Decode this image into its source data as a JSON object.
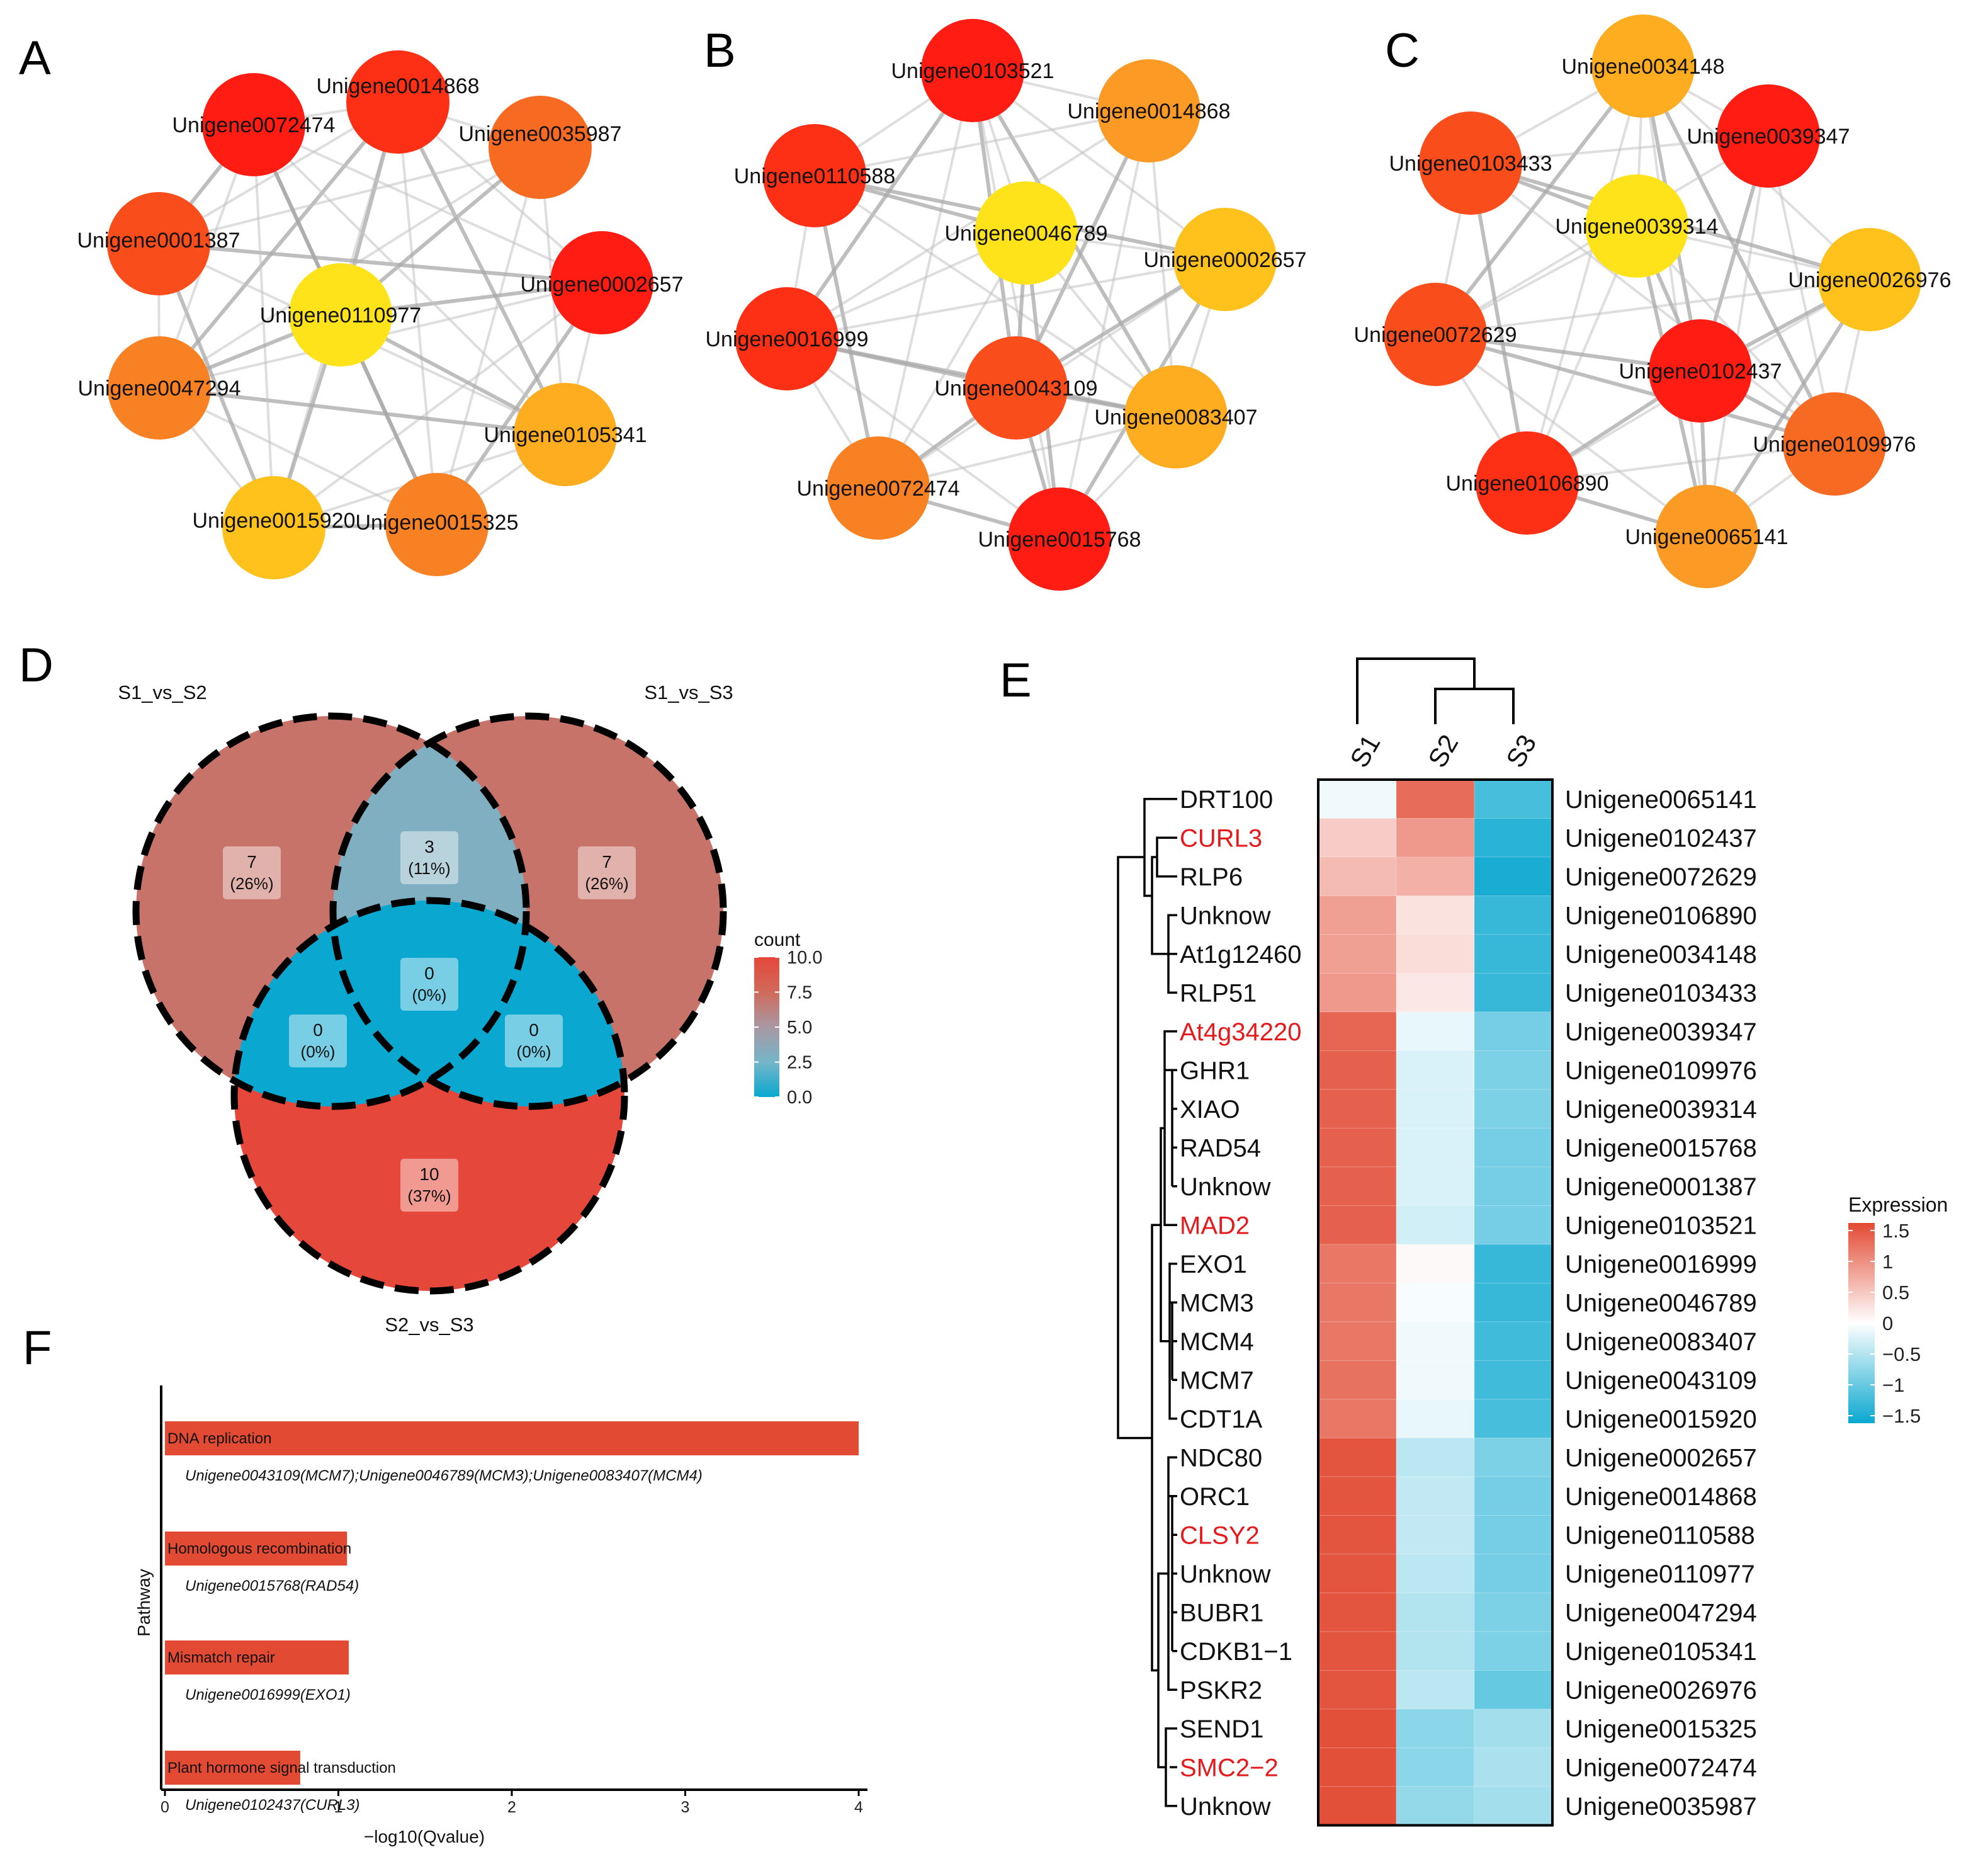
{
  "panel_labels": {
    "A": "A",
    "B": "B",
    "C": "C",
    "D": "D",
    "E": "E",
    "F": "F"
  },
  "colors": {
    "c100": "#ff1c12",
    "c90": "#fd3015",
    "c80": "#fa4d1c",
    "c70": "#f76a22",
    "c60": "#f88124",
    "c50": "#fb9a24",
    "c40": "#fdad1f",
    "c30": "#ffc21d",
    "c20": "#ffe31a",
    "heat_high": "#e24a33",
    "heat_mid": "#ffffff",
    "heat_low": "#0aa8d0",
    "edge": "#c2c2c2",
    "red_label": "#e41a1c"
  },
  "chart_data": [
    {
      "type": "network",
      "panel": "A",
      "nodes": [
        {
          "label": "Unigene0014868",
          "color": "c90"
        },
        {
          "label": "Unigene0035987",
          "color": "c70"
        },
        {
          "label": "Unigene0002657",
          "color": "c100"
        },
        {
          "label": "Unigene0105341",
          "color": "c40"
        },
        {
          "label": "Unigene0015325",
          "color": "c60"
        },
        {
          "label": "Unigene0015920",
          "color": "c30"
        },
        {
          "label": "Unigene0047294",
          "color": "c60"
        },
        {
          "label": "Unigene0001387",
          "color": "c80"
        },
        {
          "label": "Unigene0072474",
          "color": "c100"
        },
        {
          "label": "Unigene0110977",
          "color": "c20"
        }
      ]
    },
    {
      "type": "network",
      "panel": "B",
      "nodes": [
        {
          "label": "Unigene0103521",
          "color": "c100"
        },
        {
          "label": "Unigene0014868",
          "color": "c50"
        },
        {
          "label": "Unigene0002657",
          "color": "c30"
        },
        {
          "label": "Unigene0083407",
          "color": "c40"
        },
        {
          "label": "Unigene0015768",
          "color": "c100"
        },
        {
          "label": "Unigene0072474",
          "color": "c60"
        },
        {
          "label": "Unigene0016999",
          "color": "c90"
        },
        {
          "label": "Unigene0110588",
          "color": "c90"
        },
        {
          "label": "Unigene0046789",
          "color": "c20"
        },
        {
          "label": "Unigene0043109",
          "color": "c80"
        }
      ]
    },
    {
      "type": "network",
      "panel": "C",
      "nodes": [
        {
          "label": "Unigene0034148",
          "color": "c40"
        },
        {
          "label": "Unigene0039347",
          "color": "c100"
        },
        {
          "label": "Unigene0026976",
          "color": "c30"
        },
        {
          "label": "Unigene0109976",
          "color": "c70"
        },
        {
          "label": "Unigene0065141",
          "color": "c50"
        },
        {
          "label": "Unigene0106890",
          "color": "c90"
        },
        {
          "label": "Unigene0072629",
          "color": "c80"
        },
        {
          "label": "Unigene0103433",
          "color": "c80"
        },
        {
          "label": "Unigene0039314",
          "color": "c20"
        },
        {
          "label": "Unigene0102437",
          "color": "c100"
        }
      ]
    },
    {
      "type": "venn",
      "panel": "D",
      "sets": [
        "S1_vs_S2",
        "S1_vs_S3",
        "S2_vs_S3"
      ],
      "regions": [
        {
          "sets": "S1_vs_S2 only",
          "count": "7",
          "pct": "(26%)",
          "value": 7
        },
        {
          "sets": "S1_vs_S2 & S1_vs_S3",
          "count": "3",
          "pct": "(11%)",
          "value": 3
        },
        {
          "sets": "S1_vs_S3 only",
          "count": "7",
          "pct": "(26%)",
          "value": 7
        },
        {
          "sets": "S1_vs_S2 & S2_vs_S3",
          "count": "0",
          "pct": "(0%)",
          "value": 0
        },
        {
          "sets": "all three",
          "count": "0",
          "pct": "(0%)",
          "value": 0
        },
        {
          "sets": "S1_vs_S3 & S2_vs_S3",
          "count": "0",
          "pct": "(0%)",
          "value": 0
        },
        {
          "sets": "S2_vs_S3 only",
          "count": "10",
          "pct": "(37%)",
          "value": 10
        }
      ],
      "legend": {
        "title": "count",
        "ticks": [
          "10.0",
          "7.5",
          "5.0",
          "2.5",
          "0.0"
        ],
        "range": [
          0,
          10
        ]
      }
    },
    {
      "type": "heatmap",
      "panel": "E",
      "columns": [
        "S1",
        "S2",
        "S3"
      ],
      "rows": [
        {
          "name": "DRT100",
          "id": "Unigene0065141",
          "red": false,
          "values": [
            -0.1,
            1.3,
            -1.2
          ]
        },
        {
          "name": "CURL3",
          "id": "Unigene0102437",
          "red": true,
          "values": [
            0.45,
            0.9,
            -1.4
          ]
        },
        {
          "name": "RLP6",
          "id": "Unigene0072629",
          "red": false,
          "values": [
            0.6,
            0.7,
            -1.5
          ]
        },
        {
          "name": "Unknow",
          "id": "Unigene0106890",
          "red": false,
          "values": [
            0.85,
            0.25,
            -1.3
          ]
        },
        {
          "name": "At1g12460",
          "id": "Unigene0034148",
          "red": false,
          "values": [
            0.85,
            0.3,
            -1.3
          ]
        },
        {
          "name": "RLP51",
          "id": "Unigene0103433",
          "red": false,
          "values": [
            0.9,
            0.2,
            -1.3
          ]
        },
        {
          "name": "At4g34220",
          "id": "Unigene0039347",
          "red": true,
          "values": [
            1.35,
            -0.15,
            -0.9
          ]
        },
        {
          "name": "GHR1",
          "id": "Unigene0109976",
          "red": false,
          "values": [
            1.4,
            -0.25,
            -0.85
          ]
        },
        {
          "name": "XIAO",
          "id": "Unigene0039314",
          "red": false,
          "values": [
            1.4,
            -0.25,
            -0.85
          ]
        },
        {
          "name": "RAD54",
          "id": "Unigene0015768",
          "red": false,
          "values": [
            1.4,
            -0.25,
            -0.9
          ]
        },
        {
          "name": "Unknow",
          "id": "Unigene0001387",
          "red": false,
          "values": [
            1.4,
            -0.25,
            -0.9
          ]
        },
        {
          "name": "MAD2",
          "id": "Unigene0103521",
          "red": true,
          "values": [
            1.4,
            -0.3,
            -0.9
          ]
        },
        {
          "name": "EXO1",
          "id": "Unigene0016999",
          "red": false,
          "values": [
            1.2,
            0.05,
            -1.3
          ]
        },
        {
          "name": "MCM3",
          "id": "Unigene0046789",
          "red": false,
          "values": [
            1.2,
            -0.05,
            -1.3
          ]
        },
        {
          "name": "MCM4",
          "id": "Unigene0083407",
          "red": false,
          "values": [
            1.2,
            -0.1,
            -1.25
          ]
        },
        {
          "name": "MCM7",
          "id": "Unigene0043109",
          "red": false,
          "values": [
            1.25,
            -0.1,
            -1.25
          ]
        },
        {
          "name": "CDT1A",
          "id": "Unigene0015920",
          "red": false,
          "values": [
            1.2,
            -0.15,
            -1.2
          ]
        },
        {
          "name": "NDC80",
          "id": "Unigene0002657",
          "red": false,
          "values": [
            1.5,
            -0.45,
            -0.85
          ]
        },
        {
          "name": "ORC1",
          "id": "Unigene0014868",
          "red": false,
          "values": [
            1.5,
            -0.4,
            -0.9
          ]
        },
        {
          "name": "CLSY2",
          "id": "Unigene0110588",
          "red": true,
          "values": [
            1.5,
            -0.4,
            -0.9
          ]
        },
        {
          "name": "Unknow",
          "id": "Unigene0110977",
          "red": false,
          "values": [
            1.5,
            -0.45,
            -0.9
          ]
        },
        {
          "name": "BUBR1",
          "id": "Unigene0047294",
          "red": false,
          "values": [
            1.5,
            -0.5,
            -0.85
          ]
        },
        {
          "name": "CDKB1−1",
          "id": "Unigene0105341",
          "red": false,
          "values": [
            1.5,
            -0.5,
            -0.85
          ]
        },
        {
          "name": "PSKR2",
          "id": "Unigene0026976",
          "red": false,
          "values": [
            1.5,
            -0.45,
            -1.0
          ]
        },
        {
          "name": "SEND1",
          "id": "Unigene0015325",
          "red": false,
          "values": [
            1.55,
            -0.75,
            -0.6
          ]
        },
        {
          "name": "SMC2−2",
          "id": "Unigene0072474",
          "red": true,
          "values": [
            1.55,
            -0.75,
            -0.55
          ]
        },
        {
          "name": "Unknow",
          "id": "Unigene0035987",
          "red": false,
          "values": [
            1.55,
            -0.7,
            -0.6
          ]
        }
      ],
      "legend": {
        "title": "Expression",
        "ticks": [
          "1.5",
          "1",
          "0.5",
          "0",
          "−0.5",
          "−1",
          "−1.5"
        ],
        "range": [
          -1.6,
          1.6
        ]
      }
    },
    {
      "type": "bar",
      "panel": "F",
      "orientation": "horizontal",
      "ylabel": "Pathway",
      "xlabel": "−log10(Qvalue)",
      "xlim": [
        0,
        4
      ],
      "xticks": [
        "0",
        "1",
        "2",
        "3",
        "4"
      ],
      "bars": [
        {
          "category": "DNA replication",
          "value": 4.0,
          "genes": "Unigene0043109(MCM7);Unigene0046789(MCM3);Unigene0083407(MCM4)"
        },
        {
          "category": "Homologous recombination",
          "value": 1.05,
          "genes": "Unigene0015768(RAD54)"
        },
        {
          "category": "Mismatch repair",
          "value": 1.06,
          "genes": "Unigene0016999(EXO1)"
        },
        {
          "category": "Plant hormone signal transduction",
          "value": 0.78,
          "genes": "Unigene0102437(CURL3)"
        }
      ]
    }
  ]
}
